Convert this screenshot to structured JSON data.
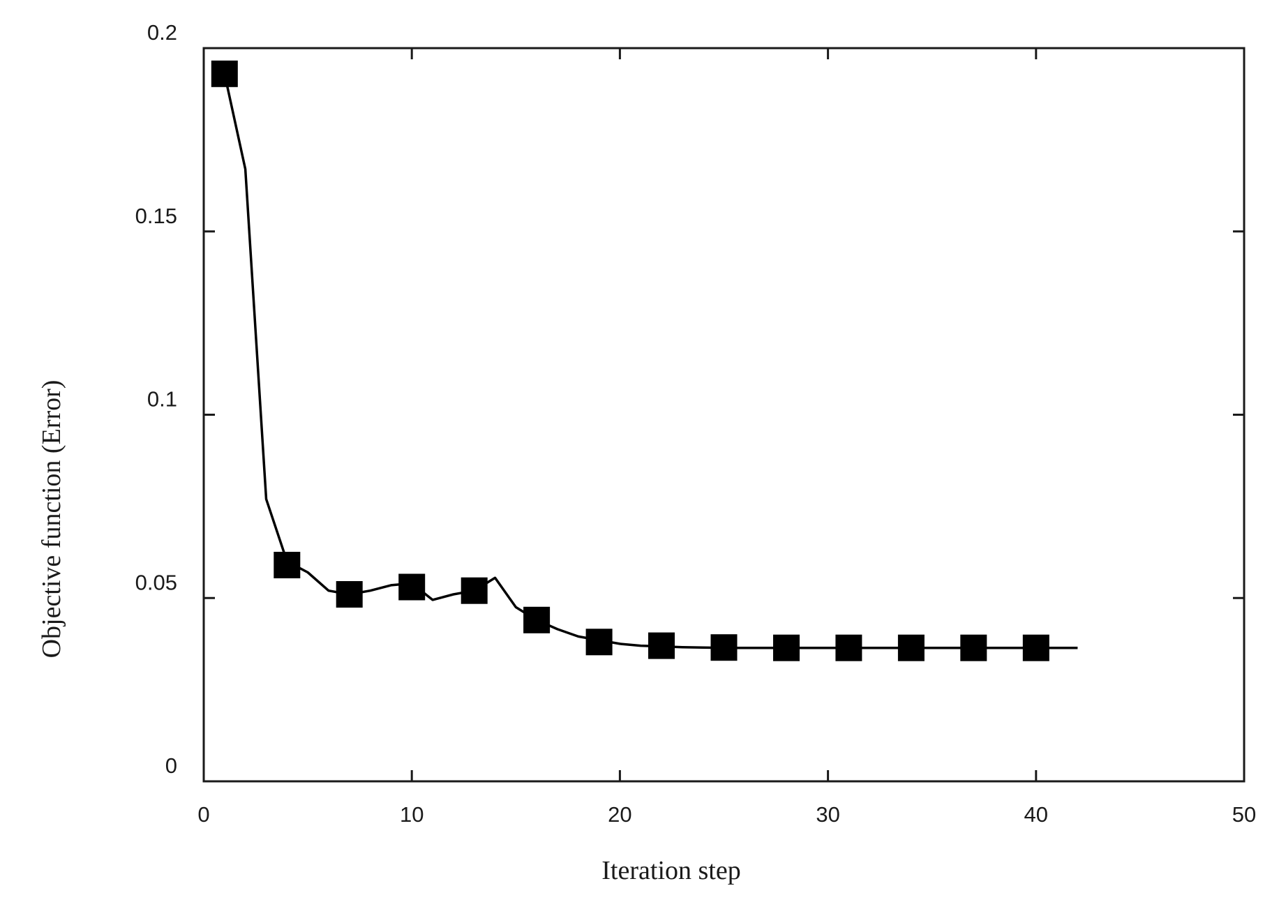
{
  "chart_data": {
    "type": "line",
    "xlabel": "Iteration step",
    "ylabel": "Objective function (Error)",
    "xlim": [
      0,
      50
    ],
    "ylim": [
      0,
      0.2
    ],
    "x_ticks": [
      0,
      10,
      20,
      30,
      40,
      50
    ],
    "x_tick_labels": [
      "0",
      "10",
      "20",
      "30",
      "40",
      "50"
    ],
    "y_ticks": [
      0,
      0.05,
      0.1,
      0.15,
      0.2
    ],
    "y_tick_labels": [
      "0",
      "0.05",
      "0.1",
      "0.15",
      "0.2"
    ],
    "grid": false,
    "marker": "square",
    "series": [
      {
        "line_x": [
          1,
          2,
          3,
          4,
          5,
          6,
          7,
          8,
          9,
          10,
          11,
          12,
          13,
          14,
          15,
          16,
          17,
          18,
          19,
          20,
          21,
          22,
          23,
          24,
          25,
          26,
          27,
          28,
          29,
          30,
          31,
          32,
          33,
          34,
          35,
          36,
          37,
          38,
          39,
          40,
          41,
          42
        ],
        "line_y": [
          0.193,
          0.167,
          0.077,
          0.06,
          0.057,
          0.052,
          0.051,
          0.052,
          0.0535,
          0.054,
          0.0495,
          0.051,
          0.052,
          0.0555,
          0.0475,
          0.044,
          0.0415,
          0.0395,
          0.0385,
          0.0375,
          0.037,
          0.0368,
          0.0366,
          0.0365,
          0.0364,
          0.0364,
          0.0364,
          0.0364,
          0.0364,
          0.0364,
          0.0364,
          0.0364,
          0.0364,
          0.0364,
          0.0364,
          0.0364,
          0.0364,
          0.0364,
          0.0364,
          0.0364,
          0.0364,
          0.0364
        ],
        "marker_x": [
          1,
          4,
          7,
          10,
          13,
          16,
          19,
          22,
          25,
          28,
          31,
          34,
          37,
          40
        ],
        "marker_y": [
          0.193,
          0.059,
          0.051,
          0.053,
          0.052,
          0.044,
          0.038,
          0.037,
          0.0365,
          0.0364,
          0.0364,
          0.0364,
          0.0364,
          0.0364
        ]
      }
    ]
  }
}
